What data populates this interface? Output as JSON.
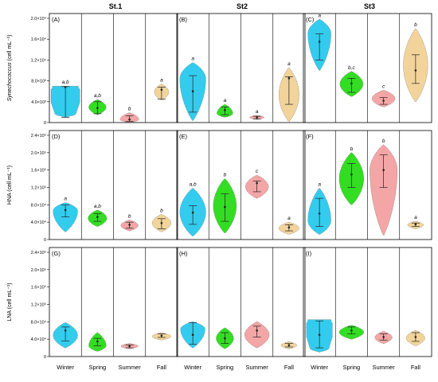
{
  "figure": {
    "columns": [
      "St.1",
      "St2",
      "St3"
    ],
    "categories": [
      "Winter",
      "Spring",
      "Summer",
      "Fall"
    ],
    "colors": {
      "Winter": "#33ccee",
      "Spring": "#33dd22",
      "Summer": "#f4a6a6",
      "Fall": "#f2d49a",
      "panel_border": "#000000"
    }
  },
  "chart_data": [
    {
      "type": "violin",
      "row": 0,
      "col": 0,
      "panel_label": "(A)",
      "ylabel": "Synechococcus (cell mL⁻¹)",
      "ylim": [
        0,
        20000
      ],
      "yticks": [
        "0",
        "4.0×10³",
        "8.0×10³",
        "1.2×10⁴",
        "1.6×10⁴",
        "2.0×10⁴"
      ],
      "yticks_values": [
        0,
        4000,
        8000,
        12000,
        16000,
        20000
      ],
      "series": [
        {
          "season": "Winter",
          "min": 1000,
          "q1": 1000,
          "median": 6800,
          "q3": 6900,
          "max": 7000,
          "max_width": 1.0,
          "shape": "flat",
          "letter": "a,b"
        },
        {
          "season": "Spring",
          "min": 1500,
          "q1": 1700,
          "median": 2800,
          "q3": 4000,
          "max": 4400,
          "max_width": 0.6,
          "shape": "mid",
          "letter": "a,b"
        },
        {
          "season": "Summer",
          "min": 0,
          "q1": 200,
          "median": 600,
          "q3": 1300,
          "max": 1900,
          "max_width": 0.65,
          "shape": "low",
          "letter": "b"
        },
        {
          "season": "Fall",
          "min": 4300,
          "q1": 4500,
          "median": 6300,
          "q3": 6800,
          "max": 7400,
          "max_width": 0.5,
          "shape": "mid",
          "letter": "a"
        }
      ]
    },
    {
      "type": "violin",
      "row": 0,
      "col": 1,
      "panel_label": "(B)",
      "ylabel": "",
      "ylim": [
        0,
        20000
      ],
      "series": [
        {
          "season": "Winter",
          "min": 400,
          "q1": 2000,
          "median": 6000,
          "q3": 9000,
          "max": 11500,
          "max_width": 0.9,
          "shape": "top",
          "letter": "a"
        },
        {
          "season": "Spring",
          "min": 1000,
          "q1": 1500,
          "median": 2400,
          "q3": 3000,
          "max": 3500,
          "max_width": 0.55,
          "shape": "low",
          "letter": "a"
        },
        {
          "season": "Summer",
          "min": 600,
          "q1": 700,
          "median": 1000,
          "q3": 1200,
          "max": 1400,
          "max_width": 0.5,
          "shape": "mid",
          "letter": "a"
        },
        {
          "season": "Fall",
          "min": 200,
          "q1": 3500,
          "median": 8500,
          "q3": 8800,
          "max": 10500,
          "max_width": 0.7,
          "shape": "mid",
          "letter": "a"
        }
      ]
    },
    {
      "type": "violin",
      "row": 0,
      "col": 2,
      "panel_label": "(C)",
      "ylabel": "",
      "ylim": [
        0,
        20000
      ],
      "series": [
        {
          "season": "Winter",
          "min": 10000,
          "q1": 12000,
          "median": 15500,
          "q3": 17000,
          "max": 19800,
          "max_width": 0.8,
          "shape": "top",
          "letter": "a"
        },
        {
          "season": "Spring",
          "min": 5000,
          "q1": 5800,
          "median": 7500,
          "q3": 8500,
          "max": 9800,
          "max_width": 0.8,
          "shape": "mid",
          "letter": "b,c"
        },
        {
          "season": "Summer",
          "min": 3000,
          "q1": 3500,
          "median": 4200,
          "q3": 4800,
          "max": 6200,
          "max_width": 0.8,
          "shape": "mid",
          "letter": "c"
        },
        {
          "season": "Fall",
          "min": 4000,
          "q1": 7500,
          "median": 10000,
          "q3": 13000,
          "max": 18000,
          "max_width": 0.85,
          "shape": "mid",
          "letter": "b"
        }
      ]
    },
    {
      "type": "violin",
      "row": 1,
      "col": 0,
      "panel_label": "(D)",
      "ylabel": "HNA (cell mL⁻¹)",
      "ylim": [
        0,
        240000
      ],
      "yticks": [
        "0",
        "4.0×10⁴",
        "8.0×10⁴",
        "1.2×10⁵",
        "1.6×10⁵",
        "2.0×10⁵",
        "2.4×10⁵"
      ],
      "yticks_values": [
        0,
        40000,
        80000,
        120000,
        160000,
        200000,
        240000
      ],
      "series": [
        {
          "season": "Winter",
          "min": 18000,
          "q1": 52000,
          "median": 68000,
          "q3": 80000,
          "max": 85000,
          "max_width": 0.85,
          "shape": "top",
          "letter": "a"
        },
        {
          "season": "Spring",
          "min": 30000,
          "q1": 42000,
          "median": 52000,
          "q3": 60000,
          "max": 68000,
          "max_width": 0.65,
          "shape": "mid",
          "letter": "a,b"
        },
        {
          "season": "Summer",
          "min": 20000,
          "q1": 26000,
          "median": 34000,
          "q3": 40000,
          "max": 45000,
          "max_width": 0.6,
          "shape": "mid",
          "letter": "b"
        },
        {
          "season": "Fall",
          "min": 18000,
          "q1": 25000,
          "median": 38000,
          "q3": 48000,
          "max": 58000,
          "max_width": 0.65,
          "shape": "mid",
          "letter": "b"
        }
      ]
    },
    {
      "type": "violin",
      "row": 1,
      "col": 1,
      "panel_label": "(E)",
      "ylabel": "",
      "ylim": [
        0,
        240000
      ],
      "series": [
        {
          "season": "Winter",
          "min": 8000,
          "q1": 35000,
          "median": 62000,
          "q3": 78000,
          "max": 118000,
          "max_width": 0.9,
          "shape": "mid",
          "letter": "a,b"
        },
        {
          "season": "Spring",
          "min": 15000,
          "q1": 42000,
          "median": 75000,
          "q3": 105000,
          "max": 140000,
          "max_width": 0.8,
          "shape": "mid",
          "letter": "b"
        },
        {
          "season": "Summer",
          "min": 95000,
          "q1": 110000,
          "median": 130000,
          "q3": 135000,
          "max": 148000,
          "max_width": 0.8,
          "shape": "mid",
          "letter": "c"
        },
        {
          "season": "Fall",
          "min": 12000,
          "q1": 20000,
          "median": 28000,
          "q3": 34000,
          "max": 40000,
          "max_width": 0.7,
          "shape": "mid",
          "letter": "a"
        }
      ]
    },
    {
      "type": "violin",
      "row": 1,
      "col": 2,
      "panel_label": "(F)",
      "ylabel": "",
      "ylim": [
        0,
        240000
      ],
      "series": [
        {
          "season": "Winter",
          "min": 12000,
          "q1": 30000,
          "median": 60000,
          "q3": 95000,
          "max": 118000,
          "max_width": 0.8,
          "shape": "low",
          "letter": "a"
        },
        {
          "season": "Spring",
          "min": 80000,
          "q1": 120000,
          "median": 150000,
          "q3": 175000,
          "max": 200000,
          "max_width": 0.85,
          "shape": "mid",
          "letter": "b"
        },
        {
          "season": "Summer",
          "min": 10000,
          "q1": 120000,
          "median": 160000,
          "q3": 195000,
          "max": 218000,
          "max_width": 0.95,
          "shape": "top",
          "letter": "b"
        },
        {
          "season": "Fall",
          "min": 25000,
          "q1": 30000,
          "median": 35000,
          "q3": 38000,
          "max": 42000,
          "max_width": 0.55,
          "shape": "mid",
          "letter": "a"
        }
      ]
    },
    {
      "type": "violin",
      "row": 2,
      "col": 0,
      "panel_label": "(G)",
      "ylabel": "LNA (cell mL⁻¹)",
      "ylim": [
        0,
        240000
      ],
      "yticks": [
        "0",
        "4.0×10⁴",
        "8.0×10⁴",
        "1.2×10⁵",
        "1.6×10⁵",
        "2.0×10⁵",
        "2.4×10⁵"
      ],
      "yticks_values": [
        0,
        40000,
        80000,
        120000,
        160000,
        200000,
        240000
      ],
      "series": [
        {
          "season": "Winter",
          "min": 20000,
          "q1": 36000,
          "median": 60000,
          "q3": 68000,
          "max": 78000,
          "max_width": 0.85,
          "shape": "mid",
          "letter": ""
        },
        {
          "season": "Spring",
          "min": 12000,
          "q1": 25000,
          "median": 35000,
          "q3": 42000,
          "max": 55000,
          "max_width": 0.6,
          "shape": "low",
          "letter": ""
        },
        {
          "season": "Summer",
          "min": 18000,
          "q1": 20000,
          "median": 24000,
          "q3": 27000,
          "max": 30000,
          "max_width": 0.6,
          "shape": "mid",
          "letter": ""
        },
        {
          "season": "Fall",
          "min": 38000,
          "q1": 44000,
          "median": 48000,
          "q3": 52000,
          "max": 55000,
          "max_width": 0.65,
          "shape": "mid",
          "letter": ""
        }
      ]
    },
    {
      "type": "violin",
      "row": 2,
      "col": 1,
      "panel_label": "(H)",
      "ylabel": "",
      "ylim": [
        0,
        240000
      ],
      "series": [
        {
          "season": "Winter",
          "min": 20000,
          "q1": 28000,
          "median": 50000,
          "q3": 78000,
          "max": 80000,
          "max_width": 0.85,
          "shape": "top",
          "letter": ""
        },
        {
          "season": "Spring",
          "min": 18000,
          "q1": 30000,
          "median": 42000,
          "q3": 55000,
          "max": 66000,
          "max_width": 0.6,
          "shape": "mid",
          "letter": ""
        },
        {
          "season": "Summer",
          "min": 20000,
          "q1": 45000,
          "median": 60000,
          "q3": 70000,
          "max": 80000,
          "max_width": 0.85,
          "shape": "mid",
          "letter": ""
        },
        {
          "season": "Fall",
          "min": 18000,
          "q1": 22000,
          "median": 26000,
          "q3": 30000,
          "max": 34000,
          "max_width": 0.55,
          "shape": "mid",
          "letter": ""
        }
      ]
    },
    {
      "type": "violin",
      "row": 2,
      "col": 2,
      "panel_label": "(I)",
      "ylabel": "",
      "ylim": [
        0,
        240000
      ],
      "series": [
        {
          "season": "Winter",
          "min": 10000,
          "q1": 20000,
          "median": 50000,
          "q3": 82000,
          "max": 85000,
          "max_width": 0.9,
          "shape": "flat",
          "letter": ""
        },
        {
          "season": "Spring",
          "min": 40000,
          "q1": 52000,
          "median": 60000,
          "q3": 68000,
          "max": 72000,
          "max_width": 0.85,
          "shape": "mid",
          "letter": ""
        },
        {
          "season": "Summer",
          "min": 30000,
          "q1": 38000,
          "median": 45000,
          "q3": 52000,
          "max": 58000,
          "max_width": 0.6,
          "shape": "mid",
          "letter": ""
        },
        {
          "season": "Fall",
          "min": 25000,
          "q1": 35000,
          "median": 45000,
          "q3": 55000,
          "max": 60000,
          "max_width": 0.65,
          "shape": "mid",
          "letter": ""
        }
      ]
    }
  ]
}
